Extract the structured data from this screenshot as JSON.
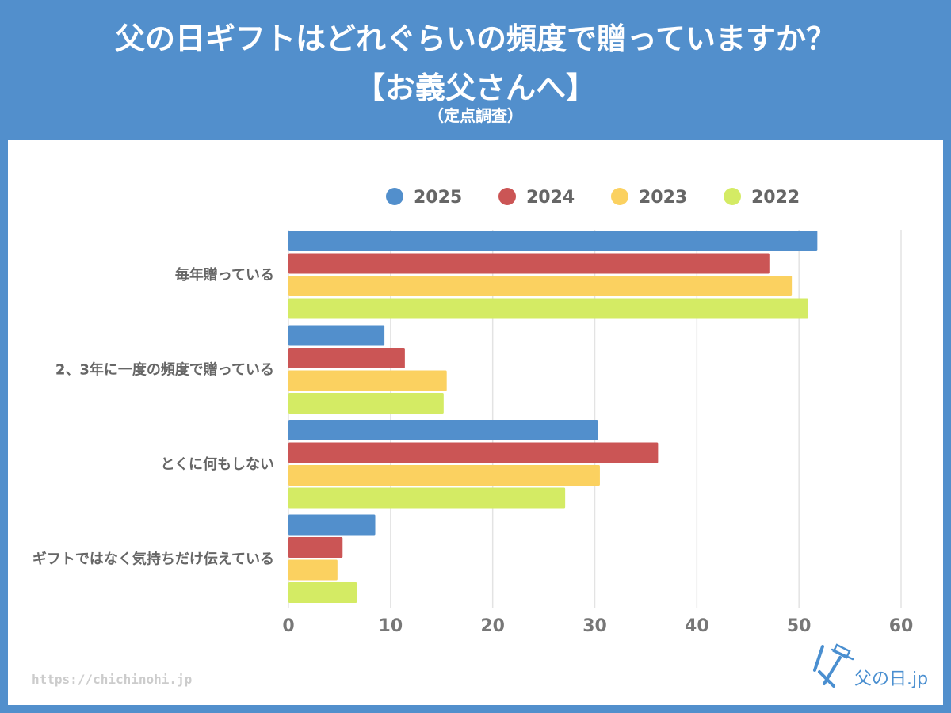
{
  "header": {
    "title_line1": "父の日ギフトはどれぐらいの頻度で贈っていますか？",
    "title_line2": "【お義父さんへ】",
    "title_line3": "（定点調査）"
  },
  "footer": {
    "url": "https://chichinohi.jp",
    "logo_text": "父の日.jp"
  },
  "colors": {
    "frame": "#528fcc",
    "2025": "#528fcc",
    "2024": "#cb5555",
    "2023": "#fbd160",
    "2022": "#d4eb64",
    "text": "#666666",
    "grid": "#e3e3e3"
  },
  "chart_data": {
    "type": "bar",
    "orientation": "horizontal",
    "title": "父の日ギフトはどれぐらいの頻度で贈っていますか？【お義父さんへ】（定点調査）",
    "xlabel": "",
    "ylabel": "",
    "xlim": [
      0,
      60
    ],
    "xticks": [
      0,
      10,
      20,
      30,
      40,
      50,
      60
    ],
    "xtick_labels": [
      "0",
      "10",
      "20",
      "30",
      "40",
      "50",
      "60"
    ],
    "grid": true,
    "legend_position": "top",
    "categories": [
      "毎年贈っている",
      "2、3年に一度の頻度で贈っている",
      "とくに何もしない",
      "ギフトではなく気持ちだけ伝えている"
    ],
    "series": [
      {
        "name": "2025",
        "color": "#528fcc",
        "values": [
          51.8,
          9.4,
          30.3,
          8.5
        ]
      },
      {
        "name": "2024",
        "color": "#cb5555",
        "values": [
          47.1,
          11.4,
          36.2,
          5.3
        ]
      },
      {
        "name": "2023",
        "color": "#fbd160",
        "values": [
          49.3,
          15.5,
          30.5,
          4.8
        ]
      },
      {
        "name": "2022",
        "color": "#d4eb64",
        "values": [
          50.9,
          15.2,
          27.1,
          6.7
        ]
      }
    ]
  }
}
